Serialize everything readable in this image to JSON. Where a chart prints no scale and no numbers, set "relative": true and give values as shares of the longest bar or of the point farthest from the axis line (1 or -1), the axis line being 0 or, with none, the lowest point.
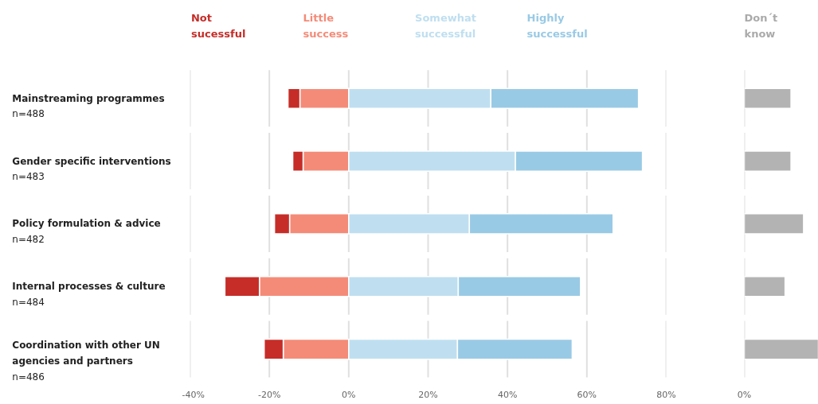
{
  "chart_data": [
    {
      "type": "bar",
      "orientation": "horizontal",
      "stacked": true,
      "categories": [
        "Mainstreaming programmes\nn=488",
        "Gender specific interventions\nn=483",
        "Policy formulation & advice\nn=482",
        "Internal processes & culture\nn=484",
        "Coordination with other UN\nagencies and partners\nn=486"
      ],
      "series": [
        {
          "name": "Little\nsuccess",
          "color": "#f48b78",
          "values": [
            -12.3,
            -11.5,
            -14.9,
            -22.5,
            -16.5
          ]
        },
        {
          "name": "Not\nsucessful",
          "color": "#c62d28",
          "values": [
            -3.0,
            -2.6,
            -3.8,
            -8.7,
            -4.8
          ]
        },
        {
          "name": "Somewhat\nsuccessful",
          "color": "#bfdff0",
          "values": [
            35.8,
            42.0,
            30.4,
            27.6,
            27.4
          ]
        },
        {
          "name": "Highly\nsuccessful",
          "color": "#99cae5",
          "values": [
            37.2,
            32.0,
            36.2,
            30.8,
            28.9
          ]
        }
      ],
      "xlim": [
        -40,
        80
      ],
      "xticks": [
        {
          "value": -40,
          "label": "-40%"
        },
        {
          "value": -20,
          "label": "-20%"
        },
        {
          "value": 0,
          "label": "0%"
        },
        {
          "value": 20,
          "label": "20%"
        },
        {
          "value": 40,
          "label": "40%"
        },
        {
          "value": 60,
          "label": "60%"
        },
        {
          "value": 80,
          "label": "80%"
        }
      ],
      "grid": "x"
    },
    {
      "type": "bar",
      "orientation": "horizontal",
      "relative": true,
      "title": "Don´t\nknow",
      "categories": [
        null,
        null,
        null,
        null,
        null
      ],
      "series": [
        {
          "color": "#b3b3b3",
          "values": [
            0.63,
            0.63,
            0.8,
            0.55,
            1
          ]
        }
      ],
      "annotations": [
        "0%"
      ]
    }
  ]
}
